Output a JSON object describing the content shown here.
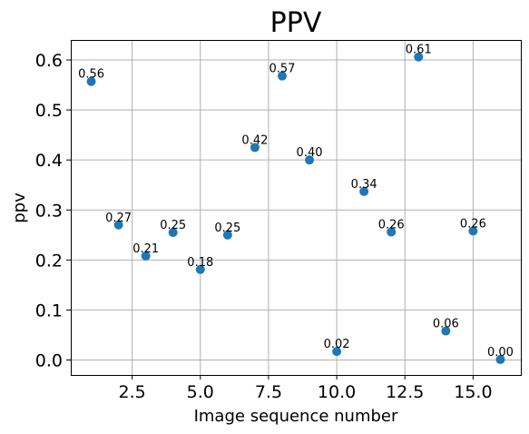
{
  "chart_data": {
    "type": "scatter",
    "title": "PPV",
    "xlabel": "Image sequence number",
    "ylabel": "ppv",
    "xlim": [
      0.25,
      16.75
    ],
    "ylim": [
      -0.03,
      0.64
    ],
    "grid": true,
    "x_ticks": [
      2.5,
      5.0,
      7.5,
      10.0,
      12.5,
      15.0
    ],
    "x_tick_labels": [
      "2.5",
      "5.0",
      "7.5",
      "10.0",
      "12.5",
      "15.0"
    ],
    "y_ticks": [
      0.0,
      0.1,
      0.2,
      0.3,
      0.4,
      0.5,
      0.6
    ],
    "y_tick_labels": [
      "0.0",
      "0.1",
      "0.2",
      "0.3",
      "0.4",
      "0.5",
      "0.6"
    ],
    "series": [
      {
        "color": "#1f77b4",
        "x": [
          1,
          2,
          3,
          4,
          5,
          6,
          7,
          8,
          9,
          10,
          11,
          12,
          13,
          14,
          15,
          16
        ],
        "y": [
          0.557,
          0.27,
          0.208,
          0.255,
          0.181,
          0.25,
          0.425,
          0.568,
          0.4,
          0.017,
          0.337,
          0.256,
          0.606,
          0.058,
          0.258,
          0.001
        ],
        "labels": [
          "0.56",
          "0.27",
          "0.21",
          "0.25",
          "0.18",
          "0.25",
          "0.42",
          "0.57",
          "0.40",
          "0.02",
          "0.34",
          "0.26",
          "0.61",
          "0.06",
          "0.26",
          "0.00"
        ]
      }
    ]
  }
}
